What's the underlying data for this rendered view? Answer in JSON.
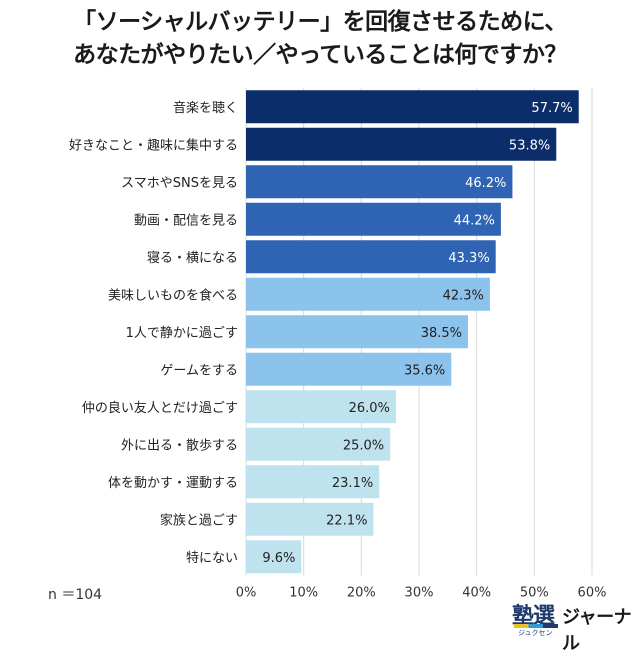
{
  "title_lines": [
    "「ソーシャルバッテリー」を回復させるために、",
    "あなたがやりたい／やっていることは何ですか？"
  ],
  "sample_note": "n ＝104",
  "logo": {
    "kanji": "塾選",
    "reading": "ジュクセン",
    "text": "ジャーナル"
  },
  "chart_data": {
    "type": "bar",
    "orientation": "horizontal",
    "categories": [
      "音楽を聴く",
      "好きなこと・趣味に集中する",
      "スマホやSNSを見る",
      "動画・配信を見る",
      "寝る・横になる",
      "美味しいものを食べる",
      "1人で静かに過ごす",
      "ゲームをする",
      "仲の良い友人とだけ過ごす",
      "外に出る・散歩する",
      "体を動かす・運動する",
      "家族と過ごす",
      "特にない"
    ],
    "values": [
      57.7,
      53.8,
      46.2,
      44.2,
      43.3,
      42.3,
      38.5,
      35.6,
      26.0,
      25.0,
      23.1,
      22.1,
      9.6
    ],
    "value_labels": [
      "57.7%",
      "53.8%",
      "46.2%",
      "44.2%",
      "43.3%",
      "42.3%",
      "38.5%",
      "35.6%",
      "26.0%",
      "25.0%",
      "23.1%",
      "22.1%",
      "9.6%"
    ],
    "bar_colors": [
      "#0b2e6b",
      "#0b2e6b",
      "#2f63b4",
      "#2f63b4",
      "#2f63b4",
      "#8cc3ec",
      "#8cc3ec",
      "#8cc3ec",
      "#bfe3ee",
      "#bfe3ee",
      "#bfe3ee",
      "#bfe3ee",
      "#bfe3ee"
    ],
    "label_colors": [
      "#ffffff",
      "#ffffff",
      "#ffffff",
      "#ffffff",
      "#ffffff",
      "#222222",
      "#222222",
      "#222222",
      "#222222",
      "#222222",
      "#222222",
      "#222222",
      "#222222"
    ],
    "xlim": [
      0,
      60
    ],
    "x_ticks": [
      0,
      10,
      20,
      30,
      40,
      50,
      60
    ],
    "x_tick_labels": [
      "0%",
      "10%",
      "20%",
      "30%",
      "40%",
      "50%",
      "60%"
    ],
    "grid": true,
    "legend": "none"
  }
}
